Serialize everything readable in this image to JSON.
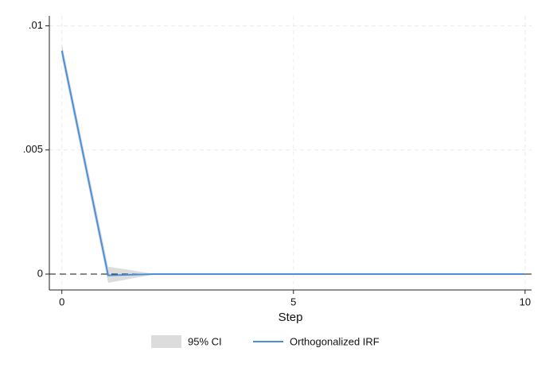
{
  "chart_data": {
    "type": "irf",
    "xlabel": "Step",
    "x": [
      0,
      1,
      2,
      3,
      4,
      5,
      6,
      7,
      8,
      9,
      10
    ],
    "series": [
      {
        "name": "95% CI",
        "color": "#dcdcdc",
        "upper": [
          0.0093,
          0.0003,
          1e-05,
          0,
          0,
          0,
          0,
          0,
          0,
          0,
          0
        ],
        "lower": [
          0.0087,
          -0.00035,
          -1e-05,
          0,
          0,
          0,
          0,
          0,
          0,
          0,
          0
        ]
      },
      {
        "name": "Orthogonalized IRF",
        "color": "#4a8fdb",
        "values": [
          0.009,
          -5e-05,
          0,
          0,
          0,
          0,
          0,
          0,
          0,
          0,
          0
        ]
      }
    ],
    "xlim": [
      -0.27,
      10.14
    ],
    "xticks": [
      0,
      5,
      10
    ],
    "ylim": [
      -0.00064,
      0.0104
    ],
    "yticks": [
      {
        "value": 0.01,
        "label": ".01"
      },
      {
        "value": 0.005,
        "label": ".005"
      },
      0
    ],
    "grid": true,
    "zero_line": true,
    "legend": "bottom"
  }
}
